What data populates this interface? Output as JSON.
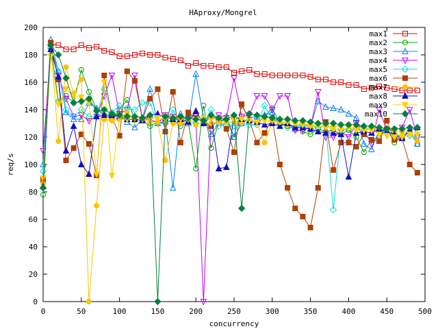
{
  "chart_data": {
    "type": "line",
    "title": "HAproxy/Mongrel",
    "xlabel": "concurrency",
    "ylabel": "req/s",
    "xlim": [
      0,
      500
    ],
    "ylim": [
      0,
      200
    ],
    "xticks": [
      0,
      50,
      100,
      150,
      200,
      250,
      300,
      350,
      400,
      450,
      500
    ],
    "yticks": [
      0,
      20,
      40,
      60,
      80,
      100,
      120,
      140,
      160,
      180,
      200
    ],
    "grid": false,
    "legend_position": "top-right",
    "x": [
      0,
      10,
      20,
      30,
      40,
      50,
      60,
      70,
      80,
      90,
      100,
      110,
      120,
      130,
      140,
      150,
      160,
      170,
      180,
      190,
      200,
      210,
      220,
      230,
      240,
      250,
      260,
      270,
      280,
      290,
      300,
      310,
      320,
      330,
      340,
      350,
      360,
      370,
      380,
      390,
      400,
      410,
      420,
      430,
      440,
      450,
      460,
      470,
      480,
      490
    ],
    "series": [
      {
        "name": "max1",
        "color": "#e00000",
        "marker": "square-open",
        "values": [
          90,
          188,
          187,
          184,
          184,
          187,
          185,
          186,
          183,
          182,
          179,
          179,
          180,
          181,
          180,
          180,
          178,
          177,
          176,
          172,
          174,
          172,
          172,
          171,
          171,
          167,
          168,
          169,
          166,
          166,
          165,
          165,
          165,
          165,
          165,
          164,
          162,
          162,
          160,
          160,
          158,
          158,
          155,
          156,
          157,
          156,
          155,
          154,
          154,
          154
        ]
      },
      {
        "name": "max2",
        "color": "#00a000",
        "marker": "circle-open",
        "values": [
          78,
          187,
          146,
          150,
          145,
          169,
          153,
          140,
          136,
          133,
          140,
          147,
          133,
          132,
          128,
          131,
          130,
          133,
          128,
          131,
          97,
          143,
          112,
          131,
          133,
          120,
          143,
          133,
          130,
          135,
          141,
          130,
          128,
          126,
          124,
          122,
          126,
          124,
          125,
          122,
          125,
          120,
          109,
          118,
          120,
          126,
          116,
          120,
          124,
          115
        ]
      },
      {
        "name": "max3",
        "color": "#0080ff",
        "marker": "triangle-open",
        "values": [
          100,
          191,
          168,
          138,
          133,
          133,
          145,
          141,
          137,
          134,
          136,
          131,
          127,
          133,
          155,
          130,
          132,
          83,
          137,
          130,
          166,
          134,
          122,
          130,
          135,
          120,
          130,
          134,
          135,
          136,
          138,
          128,
          130,
          126,
          130,
          128,
          146,
          142,
          141,
          140,
          137,
          134,
          115,
          111,
          125,
          125,
          119,
          120,
          125,
          115
        ]
      },
      {
        "name": "max4",
        "color": "#c000ff",
        "marker": "triangle-down-open",
        "values": [
          110,
          183,
          165,
          148,
          135,
          136,
          132,
          135,
          150,
          165,
          137,
          140,
          165,
          133,
          133,
          130,
          136,
          135,
          132,
          134,
          135,
          0,
          133,
          136,
          134,
          163,
          135,
          136,
          150,
          150,
          140,
          150,
          150,
          125,
          125,
          127,
          153,
          120,
          120,
          124,
          120,
          130,
          125,
          115,
          140,
          125,
          125,
          127,
          140,
          120
        ]
      },
      {
        "name": "max5",
        "color": "#00e0e0",
        "marker": "diamond-open",
        "values": [
          95,
          185,
          168,
          140,
          135,
          140,
          135,
          135,
          155,
          138,
          143,
          141,
          140,
          145,
          145,
          130,
          130,
          140,
          130,
          133,
          130,
          130,
          140,
          128,
          130,
          128,
          130,
          129,
          129,
          143,
          132,
          133,
          127,
          128,
          128,
          128,
          127,
          128,
          67,
          125,
          126,
          126,
          125,
          127,
          125,
          124,
          122,
          121,
          121,
          120
        ]
      },
      {
        "name": "max6",
        "color": "#b04000",
        "marker": "square",
        "values": [
          88,
          189,
          162,
          103,
          112,
          122,
          115,
          92,
          165,
          135,
          121,
          168,
          161,
          133,
          148,
          155,
          124,
          153,
          116,
          138,
          134,
          131,
          128,
          132,
          126,
          109,
          144,
          132,
          116,
          123,
          133,
          100,
          83,
          68,
          62,
          54,
          83,
          131,
          96,
          116,
          116,
          113,
          122,
          118,
          117,
          132,
          118,
          119,
          100,
          94
        ]
      },
      {
        "name": "max7",
        "color": "#ffc000",
        "marker": "circle",
        "values": [
          86,
          187,
          117,
          171,
          152,
          162,
          0,
          70,
          133,
          132,
          133,
          138,
          132,
          133,
          131,
          131,
          103,
          130,
          130,
          131,
          129,
          131,
          130,
          131,
          131,
          131,
          131,
          132,
          130,
          116,
          131,
          131,
          129,
          128,
          130,
          128,
          130,
          128,
          127,
          129,
          128,
          127,
          127,
          126,
          126,
          125,
          124,
          124,
          123,
          117
        ]
      },
      {
        "name": "max8",
        "color": "#1010c0",
        "marker": "triangle",
        "values": [
          84,
          184,
          164,
          110,
          128,
          100,
          93,
          135,
          136,
          136,
          135,
          133,
          133,
          132,
          136,
          137,
          134,
          133,
          133,
          131,
          139,
          130,
          135,
          97,
          98,
          135,
          133,
          132,
          131,
          129,
          130,
          128,
          130,
          127,
          127,
          126,
          124,
          123,
          123,
          122,
          91,
          123,
          124,
          123,
          126,
          124,
          122,
          119,
          125,
          127
        ]
      },
      {
        "name": "max9",
        "color": "#ffd000",
        "marker": "triangle-down",
        "values": [
          90,
          179,
          144,
          155,
          150,
          149,
          145,
          93,
          160,
          92,
          134,
          133,
          134,
          133,
          134,
          134,
          133,
          134,
          133,
          133,
          133,
          134,
          133,
          134,
          133,
          133,
          133,
          132,
          131,
          132,
          132,
          131,
          131,
          130,
          129,
          128,
          128,
          127,
          126,
          125,
          127,
          125,
          125,
          125,
          122,
          121,
          120,
          120,
          122,
          122
        ]
      },
      {
        "name": "max10",
        "color": "#008040",
        "marker": "diamond",
        "values": [
          83,
          187,
          180,
          163,
          145,
          146,
          148,
          139,
          140,
          137,
          136,
          135,
          135,
          134,
          136,
          0,
          135,
          134,
          135,
          134,
          133,
          132,
          136,
          134,
          133,
          136,
          68,
          137,
          136,
          135,
          134,
          133,
          133,
          132,
          132,
          131,
          130,
          130,
          130,
          129,
          129,
          129,
          128,
          128,
          127,
          126,
          126,
          126,
          127,
          127
        ]
      }
    ]
  }
}
